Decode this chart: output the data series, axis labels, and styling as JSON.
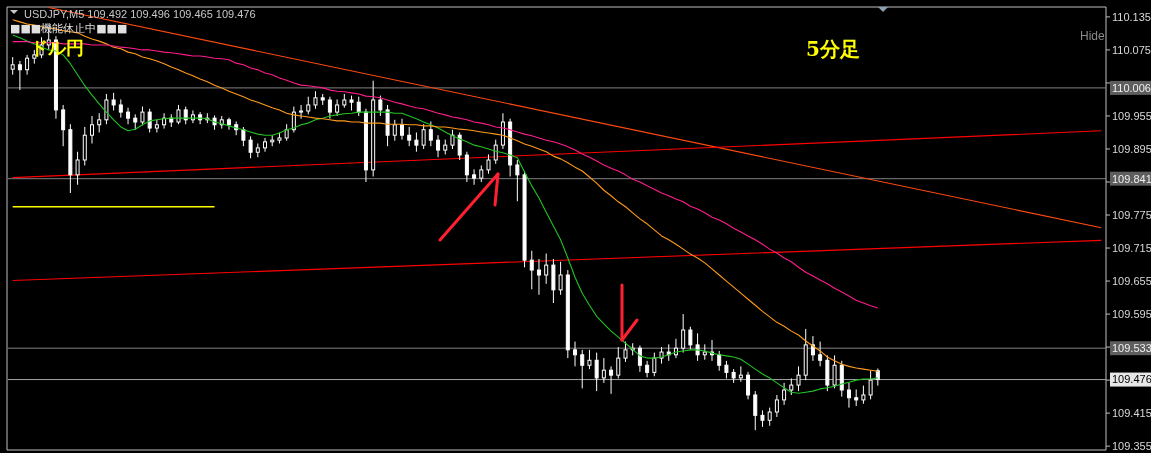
{
  "chart_data": {
    "type": "candlestick",
    "color": "#ffffff",
    "categories": [
      null,
      null,
      null,
      null,
      null,
      null,
      null,
      null,
      null,
      null,
      null,
      null,
      null,
      null,
      null,
      null,
      null,
      null,
      null,
      null,
      null,
      null,
      null,
      null,
      null,
      null,
      null,
      null,
      null,
      null,
      null,
      null,
      null,
      null,
      null,
      null,
      null,
      null,
      null,
      null,
      null,
      null,
      null,
      null,
      null,
      null,
      null,
      null,
      null,
      null,
      null,
      null,
      null,
      null,
      null,
      null,
      null,
      null,
      null,
      null,
      null,
      null,
      null,
      null,
      null,
      null,
      null,
      null,
      null,
      null,
      null,
      null,
      null,
      null,
      null,
      null,
      null,
      null,
      null,
      null,
      null,
      null,
      null,
      null,
      null,
      null,
      null,
      null,
      null,
      null,
      null,
      null,
      null,
      null,
      null,
      null,
      null,
      null,
      null,
      null,
      null,
      null,
      null,
      null,
      null,
      null,
      null,
      null,
      null,
      null,
      null,
      null,
      null,
      null,
      null,
      null,
      null,
      null,
      null,
      null,
      null,
      null,
      null,
      null,
      null,
      null,
      null,
      null,
      null,
      null,
      null,
      null,
      null,
      null,
      null,
      null,
      null,
      null,
      null,
      null,
      null,
      null,
      null,
      null,
      null,
      null,
      null,
      null,
      null,
      null,
      null,
      null
    ],
    "ohlc": [
      [
        110.04,
        110.062,
        110.03,
        110.048
      ],
      [
        110.048,
        110.055,
        110.002,
        110.039
      ],
      [
        110.039,
        110.066,
        110.03,
        110.06
      ],
      [
        110.06,
        110.075,
        110.05,
        110.066
      ],
      [
        110.066,
        110.098,
        110.06,
        110.084
      ],
      [
        110.084,
        110.115,
        110.075,
        110.093
      ],
      [
        110.093,
        110.1,
        109.95,
        109.966
      ],
      [
        109.966,
        109.975,
        109.9,
        109.93
      ],
      [
        109.93,
        109.94,
        109.815,
        109.848
      ],
      [
        109.848,
        109.89,
        109.83,
        109.875
      ],
      [
        109.875,
        109.935,
        109.865,
        109.92
      ],
      [
        109.92,
        109.955,
        109.905,
        109.939
      ],
      [
        109.939,
        109.96,
        109.925,
        109.948
      ],
      [
        109.948,
        109.995,
        109.94,
        109.984
      ],
      [
        109.984,
        109.997,
        109.965,
        109.975
      ],
      [
        109.975,
        109.985,
        109.952,
        109.962
      ],
      [
        109.962,
        109.97,
        109.94,
        109.951
      ],
      [
        109.951,
        109.958,
        109.93,
        109.944
      ],
      [
        109.944,
        109.972,
        109.938,
        109.962
      ],
      [
        109.962,
        109.968,
        109.925,
        109.933
      ],
      [
        109.933,
        109.948,
        109.925,
        109.939
      ],
      [
        109.939,
        109.96,
        109.932,
        109.951
      ],
      [
        109.951,
        109.958,
        109.935,
        109.944
      ],
      [
        109.944,
        109.975,
        109.94,
        109.966
      ],
      [
        109.966,
        109.972,
        109.94,
        109.948
      ],
      [
        109.948,
        109.965,
        109.942,
        109.957
      ],
      [
        109.957,
        109.962,
        109.94,
        109.948
      ],
      [
        109.948,
        109.96,
        109.942,
        109.951
      ],
      [
        109.951,
        109.956,
        109.93,
        109.939
      ],
      [
        109.939,
        109.955,
        109.932,
        109.948
      ],
      [
        109.948,
        109.952,
        109.93,
        109.939
      ],
      [
        109.939,
        109.945,
        109.92,
        109.93
      ],
      [
        109.93,
        109.935,
        109.9,
        109.911
      ],
      [
        109.911,
        109.918,
        109.878,
        109.889
      ],
      [
        109.889,
        109.905,
        109.88,
        109.897
      ],
      [
        109.897,
        109.915,
        109.89,
        109.908
      ],
      [
        109.908,
        109.92,
        109.9,
        109.911
      ],
      [
        109.911,
        109.925,
        109.905,
        109.915
      ],
      [
        109.915,
        109.94,
        109.91,
        109.93
      ],
      [
        109.93,
        109.972,
        109.925,
        109.962
      ],
      [
        109.962,
        109.975,
        109.95,
        109.964
      ],
      [
        109.964,
        109.99,
        109.958,
        109.975
      ],
      [
        109.975,
        110.0,
        109.968,
        109.988
      ],
      [
        109.988,
        109.995,
        109.975,
        109.984
      ],
      [
        109.984,
        109.99,
        109.95,
        109.962
      ],
      [
        109.962,
        109.985,
        109.955,
        109.975
      ],
      [
        109.975,
        109.995,
        109.97,
        109.984
      ],
      [
        109.984,
        109.992,
        109.965,
        109.98
      ],
      [
        109.98,
        109.99,
        109.955,
        109.962
      ],
      [
        109.962,
        109.968,
        109.835,
        109.857
      ],
      [
        109.857,
        110.019,
        109.845,
        109.984
      ],
      [
        109.984,
        109.992,
        109.955,
        109.966
      ],
      [
        109.966,
        109.975,
        109.9,
        109.92
      ],
      [
        109.92,
        109.948,
        109.91,
        109.939
      ],
      [
        109.939,
        109.95,
        109.912,
        109.92
      ],
      [
        109.92,
        109.935,
        109.9,
        109.911
      ],
      [
        109.911,
        109.925,
        109.89,
        109.902
      ],
      [
        109.902,
        109.94,
        109.895,
        109.93
      ],
      [
        109.93,
        109.945,
        109.9,
        109.911
      ],
      [
        109.911,
        109.92,
        109.88,
        109.893
      ],
      [
        109.893,
        109.912,
        109.885,
        109.902
      ],
      [
        109.902,
        109.93,
        109.895,
        109.92
      ],
      [
        109.92,
        109.925,
        109.875,
        109.884
      ],
      [
        109.884,
        109.89,
        109.835,
        109.848
      ],
      [
        109.848,
        109.858,
        109.83,
        109.842
      ],
      [
        109.842,
        109.865,
        109.835,
        109.857
      ],
      [
        109.857,
        109.885,
        109.85,
        109.875
      ],
      [
        109.875,
        109.912,
        109.868,
        109.902
      ],
      [
        109.902,
        109.96,
        109.895,
        109.944
      ],
      [
        109.944,
        109.95,
        109.845,
        109.866
      ],
      [
        109.866,
        109.875,
        109.8,
        109.848
      ],
      [
        109.848,
        109.855,
        109.68,
        109.693
      ],
      [
        109.693,
        109.71,
        109.64,
        109.675
      ],
      [
        109.675,
        109.695,
        109.63,
        109.666
      ],
      [
        109.666,
        109.705,
        109.65,
        109.684
      ],
      [
        109.684,
        109.695,
        109.615,
        109.639
      ],
      [
        109.639,
        109.69,
        109.63,
        109.666
      ],
      [
        109.666,
        109.675,
        109.515,
        109.53
      ],
      [
        109.53,
        109.545,
        109.5,
        109.521
      ],
      [
        109.521,
        109.53,
        109.46,
        109.502
      ],
      [
        109.502,
        109.53,
        109.495,
        109.511
      ],
      [
        109.511,
        109.525,
        109.455,
        109.479
      ],
      [
        109.479,
        109.515,
        109.47,
        109.493
      ],
      [
        109.493,
        109.5,
        109.45,
        109.484
      ],
      [
        109.484,
        109.535,
        109.478,
        109.515
      ],
      [
        109.515,
        109.545,
        109.508,
        109.53
      ],
      [
        109.53,
        109.542,
        109.52,
        109.533
      ],
      [
        109.533,
        109.538,
        109.49,
        109.502
      ],
      [
        109.502,
        109.51,
        109.48,
        109.489
      ],
      [
        109.489,
        109.525,
        109.482,
        109.515
      ],
      [
        109.515,
        109.535,
        109.505,
        109.526
      ],
      [
        109.526,
        109.54,
        109.51,
        109.521
      ],
      [
        109.521,
        109.55,
        109.515,
        109.533
      ],
      [
        109.533,
        109.595,
        109.525,
        109.566
      ],
      [
        109.566,
        109.572,
        109.53,
        109.539
      ],
      [
        109.539,
        109.56,
        109.51,
        109.521
      ],
      [
        109.521,
        109.54,
        109.512,
        109.526
      ],
      [
        109.526,
        109.548,
        109.51,
        109.521
      ],
      [
        109.521,
        109.528,
        109.492,
        109.502
      ],
      [
        109.502,
        109.51,
        109.478,
        109.489
      ],
      [
        109.489,
        109.495,
        109.47,
        109.479
      ],
      [
        109.479,
        109.5,
        109.472,
        109.484
      ],
      [
        109.484,
        109.49,
        109.44,
        109.448
      ],
      [
        109.448,
        109.455,
        109.384,
        109.411
      ],
      [
        109.411,
        109.42,
        109.39,
        109.402
      ],
      [
        109.402,
        109.425,
        109.392,
        109.417
      ],
      [
        109.417,
        109.448,
        109.408,
        109.439
      ],
      [
        109.439,
        109.47,
        109.43,
        109.457
      ],
      [
        109.457,
        109.478,
        109.448,
        109.466
      ],
      [
        109.466,
        109.5,
        109.455,
        109.484
      ],
      [
        109.484,
        109.568,
        109.475,
        109.539
      ],
      [
        109.539,
        109.555,
        109.51,
        109.521
      ],
      [
        109.521,
        109.545,
        109.5,
        109.511
      ],
      [
        109.511,
        109.52,
        109.455,
        109.466
      ],
      [
        109.466,
        109.52,
        109.46,
        109.502
      ],
      [
        109.502,
        109.51,
        109.445,
        109.457
      ],
      [
        109.457,
        109.47,
        109.425,
        109.443
      ],
      [
        109.443,
        109.458,
        109.428,
        109.439
      ],
      [
        109.439,
        109.465,
        109.432,
        109.448
      ],
      [
        109.448,
        109.492,
        109.44,
        109.475
      ],
      [
        109.492,
        109.496,
        109.465,
        109.476
      ],
      null,
      null,
      null,
      null,
      null,
      null,
      null,
      null,
      null,
      null,
      null,
      null,
      null,
      null,
      null,
      null,
      null,
      null,
      null,
      null,
      null,
      null,
      null,
      null,
      null,
      null,
      null,
      null,
      null,
      null,
      null
    ],
    "series": [
      {
        "type": "line",
        "color": "#22c322",
        "values": [
          110.102,
          110.097,
          110.091,
          110.086,
          110.08,
          110.075,
          110.073,
          110.066,
          110.05,
          110.03,
          110.01,
          109.993,
          109.977,
          109.962,
          109.948,
          109.935,
          109.928,
          109.931,
          109.939,
          109.946,
          109.948,
          109.95,
          109.951,
          109.951,
          109.951,
          109.951,
          109.951,
          109.95,
          109.944,
          109.941,
          109.937,
          109.933,
          109.93,
          109.926,
          109.922,
          109.92,
          109.92,
          109.924,
          109.93,
          109.933,
          109.939,
          109.942,
          109.948,
          109.951,
          109.955,
          109.957,
          109.959,
          109.96,
          109.962,
          109.962,
          109.962,
          109.962,
          109.962,
          109.96,
          109.96,
          109.955,
          109.95,
          109.944,
          109.939,
          109.933,
          109.926,
          109.919,
          109.913,
          109.908,
          109.902,
          109.899,
          109.895,
          109.891,
          109.888,
          109.884,
          109.879,
          109.853,
          109.828,
          109.806,
          109.78,
          109.755,
          109.73,
          109.697,
          109.662,
          109.633,
          109.611,
          109.591,
          109.577,
          109.564,
          109.553,
          109.542,
          109.531,
          109.519,
          109.515,
          109.515,
          109.517,
          109.521,
          109.526,
          109.528,
          109.53,
          109.53,
          109.528,
          109.524,
          109.521,
          109.519,
          109.517,
          109.513,
          109.504,
          109.495,
          109.486,
          109.479,
          109.47,
          109.461,
          109.453,
          109.451,
          109.453,
          109.455,
          109.459,
          109.461,
          109.464,
          109.468,
          109.471,
          109.475,
          109.477,
          109.477,
          109.479,
          null,
          null,
          null,
          null,
          null,
          null,
          null,
          null,
          null,
          null,
          null,
          null,
          null,
          null,
          null,
          null,
          null,
          null,
          null,
          null,
          null,
          null,
          null,
          null,
          null,
          null,
          null,
          null,
          null,
          null,
          null
        ]
      },
      {
        "type": "line",
        "color": "#ff9a1a",
        "values": [
          110.13,
          110.126,
          110.122,
          110.12,
          110.117,
          110.115,
          110.113,
          110.11,
          110.108,
          110.106,
          110.1,
          110.095,
          110.091,
          110.086,
          110.08,
          110.077,
          110.071,
          110.068,
          110.062,
          110.059,
          110.055,
          110.05,
          110.044,
          110.039,
          110.033,
          110.028,
          110.022,
          110.017,
          110.011,
          110.006,
          110.0,
          109.995,
          109.99,
          109.984,
          109.98,
          109.975,
          109.97,
          109.966,
          109.96,
          109.957,
          109.955,
          109.953,
          109.951,
          109.95,
          109.948,
          109.946,
          109.946,
          109.944,
          109.944,
          109.942,
          109.942,
          109.942,
          109.94,
          109.94,
          109.94,
          109.939,
          109.939,
          109.937,
          109.937,
          109.935,
          109.935,
          109.933,
          109.931,
          109.93,
          109.928,
          109.926,
          109.924,
          109.922,
          109.92,
          109.915,
          109.91,
          109.904,
          109.9,
          109.895,
          109.89,
          109.882,
          109.877,
          109.87,
          109.862,
          109.855,
          109.844,
          109.833,
          109.82,
          109.81,
          109.799,
          109.79,
          109.779,
          109.768,
          109.759,
          109.748,
          109.737,
          109.73,
          109.722,
          109.713,
          109.704,
          109.697,
          109.688,
          109.677,
          109.666,
          109.655,
          109.644,
          109.633,
          109.622,
          109.611,
          109.6,
          109.59,
          109.58,
          109.573,
          109.564,
          109.557,
          109.546,
          109.537,
          109.528,
          109.517,
          109.51,
          109.504,
          109.5,
          109.497,
          109.495,
          109.493,
          109.491,
          null,
          null,
          null,
          null,
          null,
          null,
          null,
          null,
          null,
          null,
          null,
          null,
          null,
          null,
          null,
          null,
          null,
          null,
          null,
          null,
          null,
          null,
          null,
          null,
          null,
          null,
          null,
          null,
          null,
          null,
          null
        ]
      },
      {
        "type": "line",
        "color": "#ff1c8c",
        "values": [
          110.09,
          110.09,
          110.09,
          110.088,
          110.088,
          110.088,
          110.088,
          110.086,
          110.086,
          110.086,
          110.086,
          110.084,
          110.084,
          110.084,
          110.082,
          110.08,
          110.079,
          110.077,
          110.075,
          110.075,
          110.073,
          110.071,
          110.07,
          110.068,
          110.066,
          110.064,
          110.064,
          110.062,
          110.06,
          110.059,
          110.057,
          110.051,
          110.048,
          110.042,
          110.039,
          110.033,
          110.03,
          110.024,
          110.02,
          110.015,
          110.011,
          110.01,
          110.008,
          110.006,
          110.002,
          110.0,
          109.999,
          109.997,
          109.995,
          109.991,
          109.99,
          109.988,
          109.984,
          109.98,
          109.977,
          109.973,
          109.97,
          109.968,
          109.964,
          109.96,
          109.957,
          109.953,
          109.951,
          109.948,
          109.944,
          109.942,
          109.939,
          109.935,
          109.933,
          109.93,
          109.926,
          109.922,
          109.919,
          109.915,
          109.911,
          109.908,
          109.904,
          109.899,
          109.893,
          109.886,
          109.88,
          109.873,
          109.866,
          109.86,
          109.855,
          109.848,
          109.84,
          109.835,
          109.828,
          109.822,
          109.815,
          109.81,
          109.804,
          109.799,
          109.791,
          109.786,
          109.779,
          109.771,
          109.766,
          109.759,
          109.751,
          109.744,
          109.737,
          109.73,
          109.722,
          109.713,
          109.706,
          109.697,
          109.69,
          109.68,
          109.671,
          109.664,
          109.657,
          109.65,
          109.642,
          109.635,
          109.628,
          109.62,
          109.615,
          109.61,
          109.606,
          null,
          null,
          null,
          null,
          null,
          null,
          null,
          null,
          null,
          null,
          null,
          null,
          null,
          null,
          null,
          null,
          null,
          null,
          null,
          null,
          null,
          null,
          null,
          null,
          null,
          null,
          null,
          null,
          null,
          null,
          null
        ]
      },
      {
        "type": "line",
        "color": "#ff4a10",
        "values": [
          null,
          null,
          null,
          null,
          null,
          110.152,
          null,
          null,
          null,
          null,
          null,
          null,
          null,
          null,
          null,
          null,
          null,
          null,
          null,
          null,
          null,
          null,
          null,
          null,
          null,
          null,
          null,
          null,
          null,
          null,
          null,
          null,
          null,
          null,
          null,
          null,
          null,
          null,
          null,
          null,
          null,
          null,
          null,
          null,
          null,
          null,
          null,
          null,
          null,
          null,
          null,
          null,
          null,
          null,
          null,
          null,
          null,
          null,
          null,
          null,
          null,
          null,
          null,
          null,
          null,
          null,
          null,
          null,
          null,
          null,
          null,
          null,
          null,
          null,
          null,
          null,
          null,
          null,
          null,
          null,
          null,
          null,
          null,
          null,
          null,
          null,
          null,
          null,
          null,
          null,
          null,
          null,
          null,
          null,
          null,
          null,
          null,
          null,
          null,
          null,
          null,
          null,
          null,
          null,
          null,
          null,
          null,
          null,
          null,
          null,
          null,
          null,
          null,
          null,
          null,
          null,
          null,
          null,
          null,
          null,
          null,
          null,
          null,
          null,
          null,
          null,
          null,
          null,
          null,
          null,
          null,
          null,
          null,
          null,
          null,
          null,
          null,
          null,
          null,
          null,
          null,
          null,
          null,
          null,
          null,
          null,
          null,
          null,
          null,
          null,
          null,
          109.752
        ]
      },
      {
        "type": "line",
        "color": "#ff0000",
        "values": [
          109.843,
          null,
          null,
          null,
          null,
          null,
          null,
          null,
          null,
          null,
          null,
          null,
          null,
          null,
          null,
          null,
          null,
          null,
          null,
          null,
          null,
          null,
          null,
          null,
          null,
          null,
          null,
          null,
          null,
          null,
          null,
          null,
          null,
          null,
          null,
          null,
          null,
          null,
          null,
          null,
          null,
          null,
          null,
          null,
          null,
          null,
          null,
          null,
          null,
          null,
          null,
          null,
          null,
          null,
          null,
          null,
          null,
          null,
          null,
          null,
          null,
          null,
          null,
          null,
          null,
          null,
          null,
          null,
          null,
          null,
          null,
          null,
          null,
          null,
          null,
          null,
          null,
          null,
          null,
          null,
          null,
          null,
          null,
          null,
          null,
          null,
          null,
          null,
          null,
          null,
          null,
          null,
          null,
          null,
          null,
          null,
          null,
          null,
          null,
          null,
          null,
          null,
          null,
          null,
          null,
          null,
          null,
          null,
          null,
          null,
          null,
          null,
          null,
          null,
          null,
          null,
          null,
          null,
          null,
          null,
          null,
          null,
          null,
          null,
          null,
          null,
          null,
          null,
          null,
          null,
          null,
          null,
          null,
          null,
          null,
          null,
          null,
          null,
          null,
          null,
          null,
          null,
          null,
          null,
          null,
          null,
          null,
          null,
          null,
          null,
          null,
          109.928
        ]
      },
      {
        "type": "line",
        "color": "#ff0000",
        "values": [
          109.656,
          null,
          null,
          null,
          null,
          null,
          null,
          null,
          null,
          null,
          null,
          null,
          null,
          null,
          null,
          null,
          null,
          null,
          null,
          null,
          null,
          null,
          null,
          null,
          null,
          null,
          null,
          null,
          null,
          null,
          null,
          null,
          null,
          null,
          null,
          null,
          null,
          null,
          null,
          null,
          null,
          null,
          null,
          null,
          null,
          null,
          null,
          null,
          null,
          null,
          null,
          null,
          null,
          null,
          null,
          null,
          null,
          null,
          null,
          null,
          null,
          null,
          null,
          null,
          null,
          null,
          null,
          null,
          null,
          null,
          null,
          null,
          null,
          null,
          null,
          null,
          null,
          null,
          null,
          null,
          null,
          null,
          null,
          null,
          null,
          null,
          null,
          null,
          null,
          null,
          null,
          null,
          null,
          null,
          null,
          null,
          null,
          null,
          null,
          null,
          null,
          null,
          null,
          null,
          null,
          null,
          null,
          null,
          null,
          null,
          null,
          null,
          null,
          null,
          null,
          null,
          null,
          null,
          null,
          null,
          null,
          null,
          null,
          null,
          null,
          null,
          null,
          null,
          null,
          null,
          null,
          null,
          null,
          null,
          null,
          null,
          null,
          null,
          null,
          null,
          null,
          null,
          null,
          null,
          null,
          null,
          null,
          null,
          null,
          null,
          null,
          109.729
        ]
      },
      {
        "type": "line",
        "color": "#ffff00",
        "values": [
          109.79,
          null,
          null,
          null,
          null,
          null,
          null,
          null,
          null,
          null,
          null,
          null,
          null,
          null,
          null,
          null,
          null,
          null,
          null,
          null,
          null,
          null,
          null,
          null,
          null,
          null,
          null,
          null,
          109.79,
          null,
          null,
          null,
          null,
          null,
          null,
          null,
          null,
          null,
          null,
          null,
          null,
          null,
          null,
          null,
          null,
          null,
          null,
          null,
          null,
          null,
          null,
          null,
          null,
          null,
          null,
          null,
          null,
          null,
          null,
          null,
          null,
          null,
          null,
          null,
          null,
          null,
          null,
          null,
          null,
          null,
          null,
          null,
          null,
          null,
          null,
          null,
          null,
          null,
          null,
          null,
          null,
          null,
          null,
          null,
          null,
          null,
          null,
          null,
          null,
          null,
          null,
          null,
          null,
          null,
          null,
          null,
          null,
          null,
          null,
          null,
          null,
          null,
          null,
          null,
          null,
          null,
          null,
          null,
          null,
          null,
          null,
          null,
          null,
          null,
          null,
          null,
          null,
          null,
          null,
          null,
          null,
          null,
          null,
          null,
          null,
          null,
          null,
          null,
          null,
          null,
          null,
          null,
          null,
          null,
          null,
          null,
          null,
          null,
          null,
          null,
          null,
          null,
          null,
          null,
          null,
          null,
          null,
          null,
          null,
          null,
          null,
          null
        ]
      }
    ],
    "ylim": [
      109.348,
      110.153
    ],
    "yticks": [
      110.135,
      110.075,
      {
        "value": 110.015,
        "label": null
      },
      109.955,
      109.895,
      {
        "value": 109.835,
        "label": null
      },
      109.775,
      109.715,
      109.655,
      109.595,
      {
        "value": 109.535,
        "label": null
      },
      {
        "value": 109.475,
        "label": null
      },
      109.415,
      109.355
    ],
    "ref_lines": [
      {
        "axis": "y",
        "value": 110.006,
        "label": "110.006",
        "color": "#808080"
      },
      {
        "axis": "y",
        "value": 109.841,
        "label": "109.841",
        "color": "#808080"
      },
      {
        "axis": "y",
        "value": 109.533,
        "label": "109.533",
        "color": "#808080"
      },
      {
        "axis": "y",
        "value": 109.476,
        "label": "109.476",
        "color": "#a0a4a8"
      }
    ],
    "annotations": [
      "USDJPY,M5  109.492 109.496 109.465 109.476",
      "■■■機能休止中■■■",
      "ドル円",
      "5分足",
      "Hide"
    ]
  }
}
